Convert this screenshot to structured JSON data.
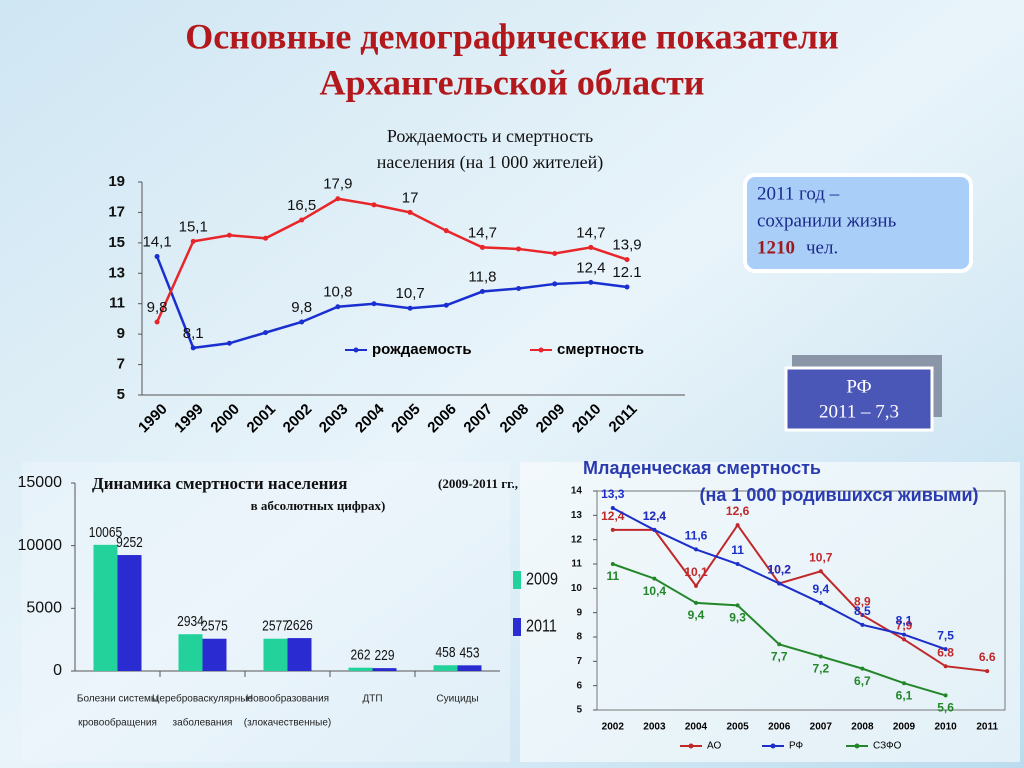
{
  "title": [
    "Основные демографические показатели",
    "Архангельской области"
  ],
  "chart_data": [
    {
      "type": "line",
      "title": [
        "Рождаемость и смертность",
        "населения (на 1 000 жителей)"
      ],
      "categories": [
        "1990",
        "1999",
        "2000",
        "2001",
        "2002",
        "2003",
        "2004",
        "2005",
        "2006",
        "2007",
        "2008",
        "2009",
        "2010",
        "2011"
      ],
      "series": [
        {
          "name": "рождаемость",
          "color": "#1a2fd0",
          "values": [
            14.1,
            8.1,
            8.4,
            9.1,
            9.8,
            10.8,
            11.0,
            10.7,
            10.9,
            11.8,
            12.0,
            12.3,
            12.4,
            12.1
          ],
          "value_labels": [
            "14,1",
            "8,1",
            null,
            null,
            "9,8",
            "10,8",
            null,
            "10,7",
            null,
            "11,8",
            null,
            null,
            "12,4",
            "12.1"
          ]
        },
        {
          "name": "смертность",
          "color": "#e8262a",
          "values": [
            9.8,
            15.1,
            15.5,
            15.3,
            16.5,
            17.9,
            17.5,
            17.0,
            15.8,
            14.7,
            14.6,
            14.3,
            14.7,
            13.9
          ],
          "value_labels": [
            "9,8",
            "15,1",
            null,
            null,
            "16,5",
            "17,9",
            null,
            "17",
            null,
            "14,7",
            null,
            null,
            "14,7",
            "13,9"
          ]
        }
      ],
      "ylim": [
        5,
        19
      ],
      "yticks": [
        5,
        7,
        9,
        11,
        13,
        15,
        17,
        19
      ],
      "grid": false,
      "legend": "bottom"
    },
    {
      "type": "bar",
      "title": "Динамика смертности населения",
      "subtitle": [
        "(2009-2011 гг.,",
        "в абсолютных цифрах)"
      ],
      "categories": [
        [
          "Болезни системы",
          "кровообращения"
        ],
        [
          "Цереброваскулярные",
          "заболевания"
        ],
        [
          "Новообразования",
          "(злокачественные)"
        ],
        [
          "ДТП"
        ],
        [
          "Суициды"
        ]
      ],
      "series": [
        {
          "name": "2009",
          "color": "#22d29a",
          "values": [
            10065,
            2934,
            2577,
            262,
            458
          ]
        },
        {
          "name": "2011",
          "color": "#2a2cd2",
          "values": [
            9252,
            2575,
            2626,
            229,
            453
          ]
        }
      ],
      "ylim": [
        0,
        15000
      ],
      "yticks": [
        0,
        5000,
        10000,
        15000
      ],
      "grid": false,
      "legend": "right"
    },
    {
      "type": "line",
      "title": [
        "Младенческая смертность",
        "(на 1 000 родившихся живыми)"
      ],
      "categories": [
        "2002",
        "2003",
        "2004",
        "2005",
        "2006",
        "2007",
        "2008",
        "2009",
        "2010",
        "2011"
      ],
      "series": [
        {
          "name": "АО",
          "color": "#c0282a",
          "values": [
            12.4,
            12.4,
            10.1,
            12.6,
            10.2,
            10.7,
            8.9,
            7.9,
            6.8,
            6.6
          ],
          "value_labels": [
            "12,4",
            "12,4",
            "10,1",
            "12,6",
            "10,2",
            "10,7",
            "8,9",
            "7,9",
            "6.8",
            "6.6"
          ]
        },
        {
          "name": "РФ",
          "color": "#1c2fc8",
          "values": [
            13.3,
            12.4,
            11.6,
            11.0,
            10.2,
            9.4,
            8.5,
            8.1,
            7.5,
            null
          ],
          "value_labels": [
            "13,3",
            "12,4",
            "11,6",
            "11",
            "10,2",
            "9,4",
            "8,5",
            "8,1",
            "7,5",
            null
          ]
        },
        {
          "name": "СЗФО",
          "color": "#23872a",
          "values": [
            11.0,
            10.4,
            9.4,
            9.3,
            7.7,
            7.2,
            6.7,
            6.1,
            5.6,
            null
          ],
          "value_labels": [
            "11",
            "10,4",
            "9,4",
            "9,3",
            "7,7",
            "7,2",
            "6,7",
            "6,1",
            "5,6",
            null
          ]
        }
      ],
      "ylim": [
        5,
        14
      ],
      "yticks": [
        5,
        6,
        7,
        8,
        9,
        10,
        11,
        12,
        13,
        14
      ],
      "grid": false,
      "legend": "bottom"
    }
  ],
  "info_box": {
    "lines": [
      "2011 год –",
      "сохранили жизнь"
    ],
    "number": "1210",
    "unit": "чел."
  },
  "rf_box": {
    "lines": [
      "РФ",
      "2011 – 7,3"
    ]
  }
}
